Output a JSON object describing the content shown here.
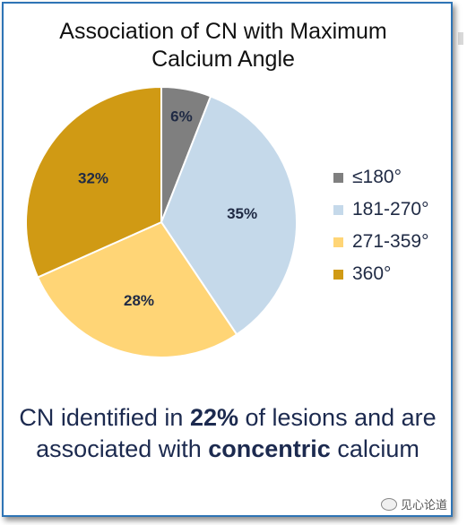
{
  "chart_data": {
    "type": "pie",
    "title": "Association of CN with Maximum Calcium Angle",
    "categories": [
      "≤180°",
      "181-270°",
      "271-359°",
      "360°"
    ],
    "values": [
      6,
      35,
      28,
      32
    ],
    "labels": [
      "6%",
      "35%",
      "28%",
      "32%"
    ],
    "colors": [
      "#7f7f7f",
      "#c5d9ea",
      "#ffd576",
      "#d09a14"
    ],
    "legend_position": "right"
  },
  "title_lines": [
    "Association of CN with Maximum",
    "Calcium Angle"
  ],
  "callout": {
    "part1": "CN identified in ",
    "highlight1": "22%",
    "part2": " of lesions and are associated with ",
    "highlight2": "concentric",
    "part3": " calcium"
  },
  "watermark": {
    "text": "见心论道"
  }
}
